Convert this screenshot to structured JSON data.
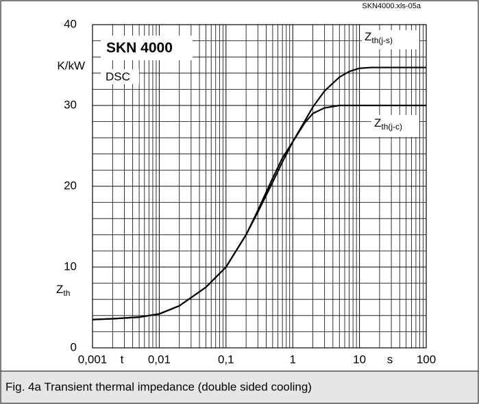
{
  "chart_data": {
    "type": "line",
    "source": "SKN4000.xls-05a",
    "title": "SKN 4000",
    "subtitle": "DSC",
    "y_unit": "K/kW",
    "y_label": "Zth",
    "x_label": "t",
    "x_unit": "s",
    "caption": "Fig. 4a Transient thermal impedance (double sided cooling)",
    "x_log": true,
    "grid": true,
    "minor_grid": true,
    "x": [
      0.001,
      0.002,
      0.005,
      0.01,
      0.02,
      0.05,
      0.1,
      0.2,
      0.3,
      0.5,
      0.7,
      1,
      1.5,
      2,
      3,
      5,
      7,
      10,
      15,
      20,
      50,
      100
    ],
    "series": [
      {
        "name": "Zth(j-s)",
        "color": "#000000",
        "values": [
          3.5,
          3.6,
          3.8,
          4.2,
          5.2,
          7.5,
          10,
          14,
          16.8,
          20.5,
          23,
          25.5,
          28,
          29.8,
          31.8,
          33.5,
          34.2,
          34.6,
          34.7,
          34.7,
          34.7,
          34.7
        ]
      },
      {
        "name": "Zth(j-c)",
        "color": "#000000",
        "values": [
          3.5,
          3.6,
          3.8,
          4.2,
          5.2,
          7.5,
          10,
          14,
          17,
          21,
          23.5,
          25.5,
          27.8,
          29,
          29.7,
          30,
          30,
          30,
          30,
          30,
          30,
          30
        ]
      }
    ],
    "xlim": [
      0.001,
      100
    ],
    "xticks": [
      {
        "value": 0.001,
        "label": "0,001"
      },
      {
        "value": 0.01,
        "label": "0,01"
      },
      {
        "value": 0.1,
        "label": "0,1"
      },
      1,
      10,
      100
    ],
    "ylim": [
      0,
      40
    ],
    "yticks": [
      0,
      10,
      20,
      30,
      40
    ]
  }
}
